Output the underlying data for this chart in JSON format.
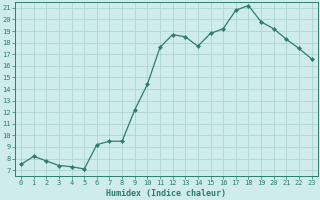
{
  "x": [
    0,
    1,
    2,
    3,
    4,
    5,
    6,
    7,
    8,
    9,
    10,
    11,
    12,
    13,
    14,
    15,
    16,
    17,
    18,
    19,
    20,
    21,
    22,
    23
  ],
  "y": [
    7.5,
    8.2,
    7.8,
    7.4,
    7.3,
    7.1,
    9.2,
    9.5,
    9.5,
    12.2,
    14.4,
    17.6,
    18.7,
    18.5,
    17.7,
    18.8,
    19.2,
    20.8,
    21.2,
    19.8,
    19.2,
    18.3,
    17.5,
    16.6
  ],
  "xlabel": "Humidex (Indice chaleur)",
  "ylabel": "",
  "xlim": [
    -0.5,
    23.5
  ],
  "ylim": [
    6.5,
    21.5
  ],
  "yticks": [
    7,
    8,
    9,
    10,
    11,
    12,
    13,
    14,
    15,
    16,
    17,
    18,
    19,
    20,
    21
  ],
  "xticks": [
    0,
    1,
    2,
    3,
    4,
    5,
    6,
    7,
    8,
    9,
    10,
    11,
    12,
    13,
    14,
    15,
    16,
    17,
    18,
    19,
    20,
    21,
    22,
    23
  ],
  "line_color": "#2e7d6e",
  "marker_color": "#2e7d6e",
  "bg_color": "#cdecea",
  "grid_color": "#aed4d0",
  "tick_color": "#2e7d6e",
  "label_color": "#2e7d6e",
  "font_name": "monospace",
  "tick_fontsize": 5.0,
  "xlabel_fontsize": 6.0
}
